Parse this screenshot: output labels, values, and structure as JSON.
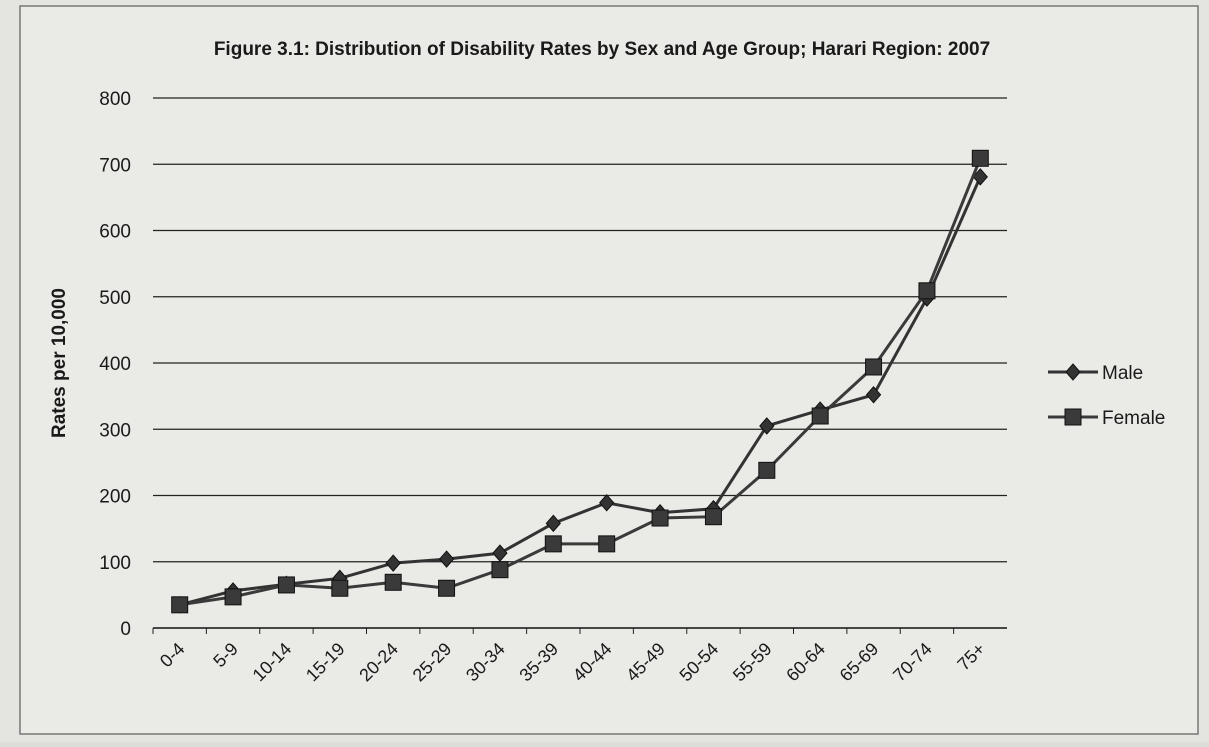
{
  "chart_data": {
    "type": "line",
    "title": "Figure 3.1: Distribution of Disability Rates by Sex and Age Group; Harari Region: 2007",
    "y_label": "Rates per 10,000",
    "categories": [
      "0-4",
      "5-9",
      "10-14",
      "15-19",
      "20-24",
      "25-29",
      "30-34",
      "35-39",
      "40-44",
      "45-49",
      "50-54",
      "55-59",
      "60-64",
      "65-69",
      "70-74",
      "75+"
    ],
    "series": [
      {
        "name": "Male",
        "color": "#333333",
        "marker": "diamond",
        "values": [
          35,
          56,
          66,
          75,
          98,
          104,
          113,
          158,
          189,
          174,
          180,
          305,
          329,
          352,
          498,
          681
        ]
      },
      {
        "name": "Female",
        "color": "#3a3a3a",
        "marker": "square",
        "values": [
          35,
          47,
          65,
          60,
          69,
          60,
          88,
          127,
          127,
          166,
          168,
          238,
          320,
          394,
          509,
          709
        ]
      }
    ],
    "ylim": [
      0,
      800
    ],
    "yticks": [
      0,
      100,
      200,
      300,
      400,
      500,
      600,
      700,
      800
    ],
    "grid": true,
    "legend": "right"
  }
}
